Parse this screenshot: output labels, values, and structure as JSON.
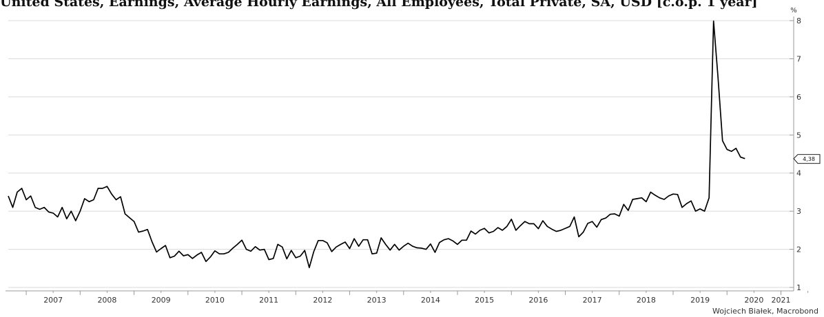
{
  "chart_data": {
    "type": "line",
    "title": "United States, Earnings, Average Hourly Earnings, All Employees, Total Private, SA, USD [c.o.p. 1 year]",
    "ylabel": "%",
    "ylim": [
      1,
      8
    ],
    "yticks": [
      "1",
      "2",
      "3",
      "4",
      "5",
      "6",
      "7",
      "8"
    ],
    "xlim": [
      "2006-09",
      "2021-02"
    ],
    "xtick_labels": [
      "2007",
      "2008",
      "2009",
      "2010",
      "2011",
      "2012",
      "2013",
      "2014",
      "2015",
      "2016",
      "2017",
      "2018",
      "2019",
      "2020",
      "2021"
    ],
    "grid": true,
    "axis_side": "right",
    "colors": {
      "line": "#000000",
      "grid": "#d9d9d9",
      "axis": "#999999"
    },
    "last_value_label": "4,38",
    "series": [
      {
        "start": "2006-09",
        "frequency": "monthly",
        "values": [
          3.4,
          3.1,
          3.5,
          3.6,
          3.3,
          3.4,
          3.1,
          3.05,
          3.1,
          2.98,
          2.95,
          2.85,
          3.1,
          2.8,
          3.0,
          2.75,
          3.0,
          3.33,
          3.25,
          3.3,
          3.6,
          3.6,
          3.65,
          3.45,
          3.3,
          3.38,
          2.93,
          2.83,
          2.73,
          2.45,
          2.48,
          2.52,
          2.2,
          1.93,
          2.02,
          2.1,
          1.78,
          1.82,
          1.95,
          1.83,
          1.86,
          1.76,
          1.85,
          1.92,
          1.68,
          1.8,
          1.96,
          1.88,
          1.88,
          1.92,
          2.03,
          2.13,
          2.24,
          2.0,
          1.95,
          2.07,
          1.98,
          2.0,
          1.73,
          1.76,
          2.13,
          2.06,
          1.75,
          1.97,
          1.78,
          1.82,
          1.97,
          1.52,
          1.94,
          2.23,
          2.23,
          2.17,
          1.94,
          2.06,
          2.13,
          2.19,
          2.02,
          2.28,
          2.08,
          2.25,
          2.25,
          1.88,
          1.9,
          2.3,
          2.13,
          1.98,
          2.13,
          1.98,
          2.08,
          2.16,
          2.08,
          2.04,
          2.03,
          2.0,
          2.14,
          1.92,
          2.18,
          2.25,
          2.28,
          2.22,
          2.13,
          2.24,
          2.24,
          2.48,
          2.4,
          2.5,
          2.55,
          2.43,
          2.47,
          2.57,
          2.5,
          2.6,
          2.79,
          2.5,
          2.62,
          2.73,
          2.67,
          2.67,
          2.54,
          2.75,
          2.6,
          2.53,
          2.47,
          2.5,
          2.55,
          2.6,
          2.85,
          2.33,
          2.45,
          2.68,
          2.73,
          2.58,
          2.78,
          2.82,
          2.92,
          2.93,
          2.87,
          3.18,
          3.02,
          3.31,
          3.33,
          3.35,
          3.25,
          3.5,
          3.42,
          3.35,
          3.31,
          3.4,
          3.45,
          3.44,
          3.1,
          3.2,
          3.27,
          3.0,
          3.06,
          3.0,
          3.35,
          7.99,
          6.5,
          4.85,
          4.62,
          4.57,
          4.65,
          4.42,
          4.38
        ]
      }
    ]
  },
  "credit": "Wojciech Białek, Macrobond"
}
